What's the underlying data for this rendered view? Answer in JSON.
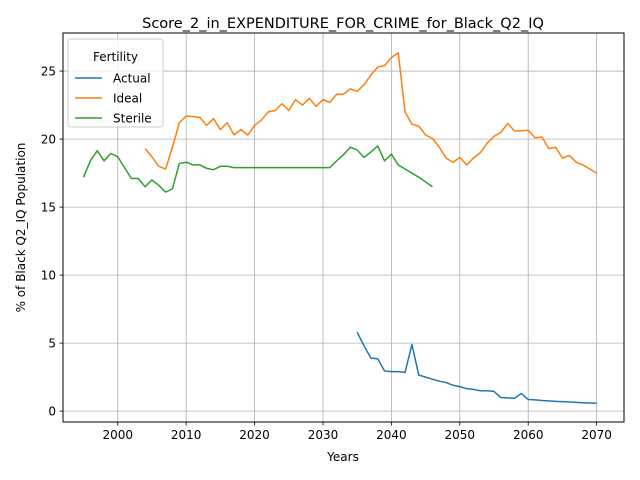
{
  "chart_data": {
    "type": "line",
    "title": "Score_2_in_EXPENDITURE_FOR_CRIME_for_Black_Q2_IQ",
    "xlabel": "Years",
    "ylabel": "% of Black Q2_IQ Population",
    "xlim": [
      1992,
      2074
    ],
    "ylim": [
      -0.8,
      27.8
    ],
    "xticks": [
      2000,
      2010,
      2020,
      2030,
      2040,
      2050,
      2060,
      2070
    ],
    "yticks": [
      0,
      5,
      10,
      15,
      20,
      25
    ],
    "grid": true,
    "legend": {
      "title": "Fertility",
      "placement": "top-left"
    },
    "series": [
      {
        "name": "Actual",
        "color": "#1f77b4",
        "x": [
          2035,
          2036,
          2037,
          2038,
          2039,
          2040,
          2041,
          2042,
          2043,
          2044,
          2045,
          2046,
          2047,
          2048,
          2049,
          2050,
          2051,
          2052,
          2053,
          2054,
          2055,
          2056,
          2057,
          2058,
          2059,
          2060,
          2061,
          2062,
          2063,
          2064,
          2065,
          2066,
          2067,
          2068,
          2069,
          2070
        ],
        "y": [
          5.8,
          4.8,
          3.9,
          3.85,
          2.95,
          2.9,
          2.9,
          2.85,
          4.9,
          2.65,
          2.5,
          2.35,
          2.2,
          2.1,
          1.9,
          1.8,
          1.65,
          1.6,
          1.5,
          1.5,
          1.45,
          1.0,
          0.97,
          0.95,
          1.3,
          0.85,
          0.83,
          0.78,
          0.75,
          0.72,
          0.7,
          0.67,
          0.64,
          0.62,
          0.6,
          0.58
        ]
      },
      {
        "name": "Ideal",
        "color": "#ff7f0e",
        "x": [
          2004,
          2005,
          2006,
          2007,
          2008,
          2009,
          2010,
          2011,
          2012,
          2013,
          2014,
          2015,
          2016,
          2017,
          2018,
          2019,
          2020,
          2021,
          2022,
          2023,
          2024,
          2025,
          2026,
          2027,
          2028,
          2029,
          2030,
          2031,
          2032,
          2033,
          2034,
          2035,
          2036,
          2037,
          2038,
          2039,
          2040,
          2041,
          2042,
          2043,
          2044,
          2045,
          2046,
          2047,
          2048,
          2049,
          2050,
          2051,
          2052,
          2053,
          2054,
          2055,
          2056,
          2057,
          2058,
          2059,
          2060,
          2061,
          2062,
          2063,
          2064,
          2065,
          2066,
          2067,
          2068,
          2069,
          2070
        ],
        "y": [
          19.3,
          18.7,
          18.0,
          17.8,
          19.4,
          21.2,
          21.7,
          21.65,
          21.6,
          21.0,
          21.5,
          20.7,
          21.2,
          20.3,
          20.7,
          20.3,
          21.0,
          21.4,
          22.0,
          22.1,
          22.6,
          22.1,
          22.9,
          22.5,
          23.0,
          22.4,
          22.9,
          22.7,
          23.3,
          23.3,
          23.7,
          23.5,
          24.0,
          24.7,
          25.3,
          25.4,
          26.0,
          26.35,
          22.0,
          21.1,
          20.95,
          20.3,
          20.05,
          19.4,
          18.6,
          18.3,
          18.65,
          18.1,
          18.6,
          19.0,
          19.7,
          20.2,
          20.5,
          21.15,
          20.6,
          20.6,
          20.65,
          20.1,
          20.15,
          19.3,
          19.4,
          18.6,
          18.8,
          18.3,
          18.1,
          17.8,
          17.5
        ]
      },
      {
        "name": "Sterile",
        "color": "#2ca02c",
        "x": [
          1995,
          1996,
          1997,
          1998,
          1999,
          2000,
          2001,
          2002,
          2003,
          2004,
          2005,
          2006,
          2007,
          2008,
          2009,
          2010,
          2011,
          2012,
          2013,
          2014,
          2015,
          2016,
          2017,
          2018,
          2019,
          2020,
          2021,
          2022,
          2023,
          2024,
          2025,
          2026,
          2027,
          2028,
          2029,
          2030,
          2031,
          2032,
          2033,
          2034,
          2035,
          2036,
          2037,
          2038,
          2039,
          2040,
          2041,
          2042,
          2043,
          2044,
          2045,
          2046
        ],
        "y": [
          17.2,
          18.4,
          19.15,
          18.4,
          18.95,
          18.7,
          17.9,
          17.1,
          17.1,
          16.5,
          17.0,
          16.6,
          16.1,
          16.35,
          18.2,
          18.3,
          18.1,
          18.1,
          17.85,
          17.75,
          18.0,
          18.0,
          17.9,
          17.9,
          17.9,
          17.9,
          17.9,
          17.9,
          17.9,
          17.9,
          17.9,
          17.9,
          17.9,
          17.9,
          17.9,
          17.9,
          17.9,
          18.4,
          18.85,
          19.4,
          19.2,
          18.65,
          19.05,
          19.5,
          18.4,
          18.9,
          18.1,
          17.8,
          17.5,
          17.2,
          16.85,
          16.5
        ]
      }
    ]
  }
}
